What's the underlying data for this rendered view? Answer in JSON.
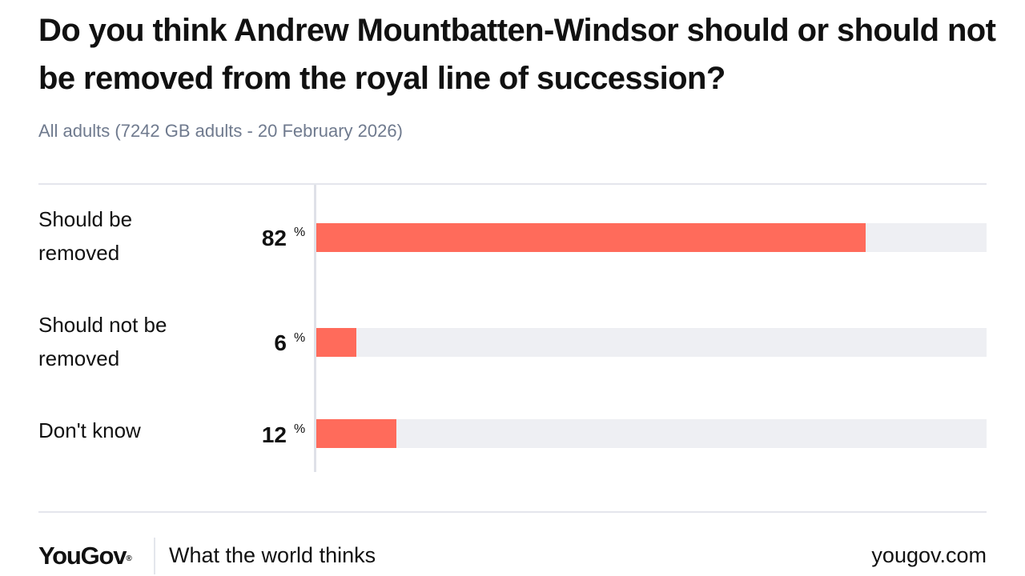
{
  "chart_data": {
    "type": "bar",
    "orientation": "horizontal",
    "title": "Do you think Andrew Mountbatten-Windsor should or should not be removed from the royal line of succession?",
    "subtitle": "All adults (7242 GB adults - 20 February 2026)",
    "categories": [
      "Should be removed",
      "Should not be removed",
      "Don't know"
    ],
    "series": [
      {
        "values": [
          82,
          6,
          12
        ],
        "color": "#ff6b5b"
      }
    ],
    "value_unit": "%",
    "xlim": [
      0,
      100
    ],
    "grid": false,
    "legend": "none",
    "track_color": "#eeeff3"
  },
  "footer": {
    "logo": "YouGov",
    "logo_mark": "®",
    "tagline": "What the world thinks",
    "site": "yougov.com"
  }
}
